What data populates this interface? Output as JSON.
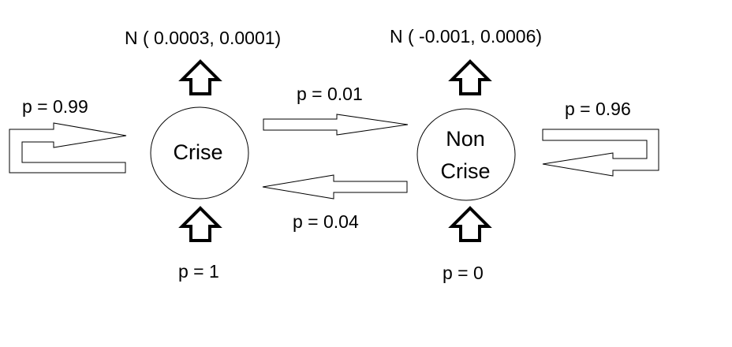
{
  "states": [
    {
      "id": "crise",
      "label_lines": [
        "Crise"
      ]
    },
    {
      "id": "non_crise",
      "label_lines": [
        "Non",
        "Crise"
      ]
    }
  ],
  "emissions": {
    "crise": "N  ( 0.0003, 0.0001)",
    "non_crise": "N  ( -0.001, 0.0006)"
  },
  "transitions": {
    "crise_self": "p = 0.99",
    "crise_to_non_crise": "p = 0.01",
    "non_crise_to_crise": "p = 0.04",
    "non_crise_self": "p = 0.96"
  },
  "initial": {
    "crise": "p = 1",
    "non_crise": "p = 0"
  }
}
